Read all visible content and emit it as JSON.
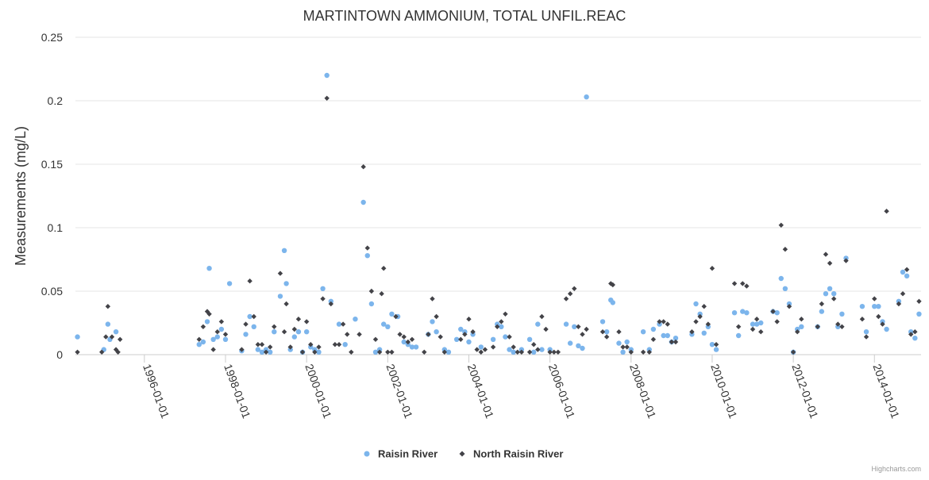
{
  "chart_data": {
    "type": "scatter",
    "title": "MARTINTOWN AMMONIUM, TOTAL UNFIL.REAC",
    "xlabel": "",
    "ylabel": "Measurements (mg/L)",
    "ylim": [
      0,
      0.25
    ],
    "yticks": [
      0,
      0.05,
      0.1,
      0.15,
      0.2,
      0.25
    ],
    "ytick_labels": [
      "0",
      "0.05",
      "0.1",
      "0.15",
      "0.2",
      "0.25"
    ],
    "xlim": [
      1994.3,
      2015.15
    ],
    "xticks": [
      1996,
      1998,
      2000,
      2002,
      2004,
      2006,
      2008,
      2010,
      2012,
      2014
    ],
    "xtick_labels": [
      "1996-01-01",
      "1998-01-01",
      "2000-01-01",
      "2002-01-01",
      "2004-01-01",
      "2006-01-01",
      "2008-01-01",
      "2010-01-01",
      "2012-01-01",
      "2014-01-01"
    ],
    "legend_position": "bottom-center",
    "grid": "horizontal",
    "series": [
      {
        "name": "Raisin River",
        "color": "#7cb5ec",
        "marker": "circle",
        "points": [
          [
            1994.35,
            0.014
          ],
          [
            1995.0,
            0.004
          ],
          [
            1995.1,
            0.024
          ],
          [
            1995.15,
            0.012
          ],
          [
            1995.3,
            0.018
          ],
          [
            1997.35,
            0.008
          ],
          [
            1997.45,
            0.01
          ],
          [
            1997.55,
            0.026
          ],
          [
            1997.6,
            0.068
          ],
          [
            1997.7,
            0.012
          ],
          [
            1997.8,
            0.014
          ],
          [
            1997.9,
            0.02
          ],
          [
            1998.0,
            0.012
          ],
          [
            1998.1,
            0.056
          ],
          [
            1998.4,
            0.003
          ],
          [
            1998.5,
            0.016
          ],
          [
            1998.6,
            0.03
          ],
          [
            1998.7,
            0.022
          ],
          [
            1998.8,
            0.004
          ],
          [
            1998.9,
            0.002
          ],
          [
            1999.0,
            0.004
          ],
          [
            1999.1,
            0.002
          ],
          [
            1999.2,
            0.018
          ],
          [
            1999.35,
            0.046
          ],
          [
            1999.45,
            0.082
          ],
          [
            1999.5,
            0.056
          ],
          [
            1999.6,
            0.004
          ],
          [
            1999.7,
            0.014
          ],
          [
            1999.8,
            0.018
          ],
          [
            1999.9,
            0.002
          ],
          [
            2000.0,
            0.018
          ],
          [
            2000.1,
            0.006
          ],
          [
            2000.2,
            0.004
          ],
          [
            2000.3,
            0.002
          ],
          [
            2000.4,
            0.052
          ],
          [
            2000.5,
            0.22
          ],
          [
            2000.6,
            0.042
          ],
          [
            2000.8,
            0.024
          ],
          [
            2000.95,
            0.008
          ],
          [
            2001.2,
            0.028
          ],
          [
            2001.4,
            0.12
          ],
          [
            2001.5,
            0.078
          ],
          [
            2001.6,
            0.04
          ],
          [
            2001.7,
            0.002
          ],
          [
            2001.8,
            0.004
          ],
          [
            2001.9,
            0.024
          ],
          [
            2002.0,
            0.022
          ],
          [
            2002.1,
            0.032
          ],
          [
            2002.25,
            0.03
          ],
          [
            2002.4,
            0.01
          ],
          [
            2002.5,
            0.008
          ],
          [
            2002.6,
            0.006
          ],
          [
            2002.7,
            0.006
          ],
          [
            2003.0,
            0.016
          ],
          [
            2003.1,
            0.026
          ],
          [
            2003.2,
            0.018
          ],
          [
            2003.4,
            0.004
          ],
          [
            2003.5,
            0.002
          ],
          [
            2003.7,
            0.012
          ],
          [
            2003.8,
            0.02
          ],
          [
            2003.9,
            0.018
          ],
          [
            2004.0,
            0.01
          ],
          [
            2004.1,
            0.016
          ],
          [
            2004.3,
            0.006
          ],
          [
            2004.6,
            0.012
          ],
          [
            2004.7,
            0.024
          ],
          [
            2004.8,
            0.022
          ],
          [
            2004.9,
            0.014
          ],
          [
            2005.0,
            0.004
          ],
          [
            2005.1,
            0.002
          ],
          [
            2005.3,
            0.004
          ],
          [
            2005.5,
            0.012
          ],
          [
            2005.6,
            0.002
          ],
          [
            2005.7,
            0.024
          ],
          [
            2005.8,
            0.004
          ],
          [
            2006.0,
            0.004
          ],
          [
            2006.4,
            0.024
          ],
          [
            2006.5,
            0.009
          ],
          [
            2006.6,
            0.022
          ],
          [
            2006.7,
            0.007
          ],
          [
            2006.8,
            0.005
          ],
          [
            2006.9,
            0.203
          ],
          [
            2007.3,
            0.026
          ],
          [
            2007.4,
            0.018
          ],
          [
            2007.5,
            0.043
          ],
          [
            2007.55,
            0.041
          ],
          [
            2007.7,
            0.009
          ],
          [
            2007.8,
            0.002
          ],
          [
            2007.9,
            0.01
          ],
          [
            2008.0,
            0.004
          ],
          [
            2008.3,
            0.018
          ],
          [
            2008.45,
            0.004
          ],
          [
            2008.55,
            0.02
          ],
          [
            2008.7,
            0.024
          ],
          [
            2008.8,
            0.015
          ],
          [
            2008.9,
            0.015
          ],
          [
            2009.0,
            0.01
          ],
          [
            2009.1,
            0.013
          ],
          [
            2009.5,
            0.016
          ],
          [
            2009.6,
            0.04
          ],
          [
            2009.7,
            0.032
          ],
          [
            2009.8,
            0.017
          ],
          [
            2009.9,
            0.022
          ],
          [
            2010.0,
            0.008
          ],
          [
            2010.1,
            0.004
          ],
          [
            2010.55,
            0.033
          ],
          [
            2010.65,
            0.015
          ],
          [
            2010.75,
            0.034
          ],
          [
            2010.85,
            0.033
          ],
          [
            2011.0,
            0.024
          ],
          [
            2011.1,
            0.024
          ],
          [
            2011.2,
            0.025
          ],
          [
            2011.5,
            0.034
          ],
          [
            2011.6,
            0.033
          ],
          [
            2011.7,
            0.06
          ],
          [
            2011.8,
            0.052
          ],
          [
            2011.9,
            0.04
          ],
          [
            2012.0,
            0.002
          ],
          [
            2012.1,
            0.02
          ],
          [
            2012.2,
            0.022
          ],
          [
            2012.6,
            0.022
          ],
          [
            2012.7,
            0.034
          ],
          [
            2012.8,
            0.048
          ],
          [
            2012.9,
            0.052
          ],
          [
            2013.0,
            0.048
          ],
          [
            2013.1,
            0.022
          ],
          [
            2013.2,
            0.032
          ],
          [
            2013.3,
            0.076
          ],
          [
            2013.7,
            0.038
          ],
          [
            2013.8,
            0.018
          ],
          [
            2014.0,
            0.038
          ],
          [
            2014.1,
            0.038
          ],
          [
            2014.2,
            0.026
          ],
          [
            2014.3,
            0.02
          ],
          [
            2014.6,
            0.042
          ],
          [
            2014.7,
            0.065
          ],
          [
            2014.8,
            0.062
          ],
          [
            2014.9,
            0.018
          ],
          [
            2015.0,
            0.013
          ],
          [
            2015.1,
            0.032
          ]
        ]
      },
      {
        "name": "North Raisin River",
        "color": "#434348",
        "marker": "diamond",
        "points": [
          [
            1994.35,
            0.002
          ],
          [
            1994.95,
            0.002
          ],
          [
            1995.05,
            0.014
          ],
          [
            1995.1,
            0.038
          ],
          [
            1995.2,
            0.014
          ],
          [
            1995.3,
            0.004
          ],
          [
            1995.35,
            0.002
          ],
          [
            1995.4,
            0.012
          ],
          [
            1997.35,
            0.012
          ],
          [
            1997.45,
            0.022
          ],
          [
            1997.55,
            0.034
          ],
          [
            1997.6,
            0.032
          ],
          [
            1997.7,
            0.004
          ],
          [
            1997.8,
            0.018
          ],
          [
            1997.9,
            0.026
          ],
          [
            1998.0,
            0.016
          ],
          [
            1998.4,
            0.004
          ],
          [
            1998.5,
            0.024
          ],
          [
            1998.6,
            0.058
          ],
          [
            1998.7,
            0.03
          ],
          [
            1998.8,
            0.008
          ],
          [
            1998.9,
            0.008
          ],
          [
            1999.0,
            0.002
          ],
          [
            1999.1,
            0.006
          ],
          [
            1999.2,
            0.022
          ],
          [
            1999.35,
            0.064
          ],
          [
            1999.45,
            0.018
          ],
          [
            1999.5,
            0.04
          ],
          [
            1999.6,
            0.006
          ],
          [
            1999.7,
            0.02
          ],
          [
            1999.8,
            0.028
          ],
          [
            1999.9,
            0.002
          ],
          [
            2000.0,
            0.026
          ],
          [
            2000.1,
            0.008
          ],
          [
            2000.2,
            0.002
          ],
          [
            2000.3,
            0.006
          ],
          [
            2000.4,
            0.044
          ],
          [
            2000.5,
            0.202
          ],
          [
            2000.6,
            0.04
          ],
          [
            2000.7,
            0.008
          ],
          [
            2000.8,
            0.008
          ],
          [
            2000.9,
            0.024
          ],
          [
            2001.0,
            0.016
          ],
          [
            2001.1,
            0.002
          ],
          [
            2001.3,
            0.016
          ],
          [
            2001.4,
            0.148
          ],
          [
            2001.5,
            0.084
          ],
          [
            2001.6,
            0.05
          ],
          [
            2001.7,
            0.012
          ],
          [
            2001.8,
            0.002
          ],
          [
            2001.85,
            0.048
          ],
          [
            2001.9,
            0.068
          ],
          [
            2002.0,
            0.002
          ],
          [
            2002.1,
            0.002
          ],
          [
            2002.2,
            0.03
          ],
          [
            2002.3,
            0.016
          ],
          [
            2002.4,
            0.014
          ],
          [
            2002.5,
            0.01
          ],
          [
            2002.6,
            0.012
          ],
          [
            2002.9,
            0.002
          ],
          [
            2003.0,
            0.016
          ],
          [
            2003.1,
            0.044
          ],
          [
            2003.2,
            0.03
          ],
          [
            2003.3,
            0.014
          ],
          [
            2003.4,
            0.002
          ],
          [
            2003.8,
            0.012
          ],
          [
            2003.9,
            0.016
          ],
          [
            2004.0,
            0.028
          ],
          [
            2004.1,
            0.018
          ],
          [
            2004.2,
            0.004
          ],
          [
            2004.3,
            0.002
          ],
          [
            2004.4,
            0.004
          ],
          [
            2004.6,
            0.006
          ],
          [
            2004.7,
            0.022
          ],
          [
            2004.8,
            0.026
          ],
          [
            2004.9,
            0.032
          ],
          [
            2005.0,
            0.014
          ],
          [
            2005.1,
            0.006
          ],
          [
            2005.2,
            0.002
          ],
          [
            2005.3,
            0.002
          ],
          [
            2005.5,
            0.002
          ],
          [
            2005.6,
            0.008
          ],
          [
            2005.7,
            0.004
          ],
          [
            2005.8,
            0.03
          ],
          [
            2005.9,
            0.02
          ],
          [
            2006.0,
            0.002
          ],
          [
            2006.1,
            0.002
          ],
          [
            2006.2,
            0.002
          ],
          [
            2006.4,
            0.044
          ],
          [
            2006.5,
            0.048
          ],
          [
            2006.6,
            0.052
          ],
          [
            2006.7,
            0.022
          ],
          [
            2006.8,
            0.016
          ],
          [
            2006.9,
            0.02
          ],
          [
            2007.3,
            0.018
          ],
          [
            2007.4,
            0.014
          ],
          [
            2007.5,
            0.056
          ],
          [
            2007.55,
            0.055
          ],
          [
            2007.7,
            0.018
          ],
          [
            2007.8,
            0.006
          ],
          [
            2007.9,
            0.006
          ],
          [
            2008.0,
            0.002
          ],
          [
            2008.3,
            0.002
          ],
          [
            2008.45,
            0.002
          ],
          [
            2008.55,
            0.012
          ],
          [
            2008.7,
            0.026
          ],
          [
            2008.8,
            0.026
          ],
          [
            2008.9,
            0.024
          ],
          [
            2009.0,
            0.01
          ],
          [
            2009.1,
            0.01
          ],
          [
            2009.5,
            0.018
          ],
          [
            2009.6,
            0.026
          ],
          [
            2009.7,
            0.03
          ],
          [
            2009.8,
            0.038
          ],
          [
            2009.9,
            0.024
          ],
          [
            2010.0,
            0.068
          ],
          [
            2010.1,
            0.008
          ],
          [
            2010.55,
            0.056
          ],
          [
            2010.65,
            0.022
          ],
          [
            2010.75,
            0.056
          ],
          [
            2010.85,
            0.054
          ],
          [
            2011.0,
            0.02
          ],
          [
            2011.1,
            0.028
          ],
          [
            2011.2,
            0.018
          ],
          [
            2011.5,
            0.034
          ],
          [
            2011.6,
            0.026
          ],
          [
            2011.7,
            0.102
          ],
          [
            2011.8,
            0.083
          ],
          [
            2011.9,
            0.038
          ],
          [
            2012.0,
            0.002
          ],
          [
            2012.1,
            0.018
          ],
          [
            2012.2,
            0.028
          ],
          [
            2012.6,
            0.022
          ],
          [
            2012.7,
            0.04
          ],
          [
            2012.8,
            0.079
          ],
          [
            2012.9,
            0.072
          ],
          [
            2013.0,
            0.044
          ],
          [
            2013.1,
            0.024
          ],
          [
            2013.2,
            0.022
          ],
          [
            2013.3,
            0.074
          ],
          [
            2013.7,
            0.028
          ],
          [
            2013.8,
            0.014
          ],
          [
            2014.0,
            0.044
          ],
          [
            2014.1,
            0.03
          ],
          [
            2014.2,
            0.024
          ],
          [
            2014.3,
            0.113
          ],
          [
            2014.6,
            0.04
          ],
          [
            2014.7,
            0.048
          ],
          [
            2014.8,
            0.067
          ],
          [
            2014.9,
            0.016
          ],
          [
            2015.0,
            0.018
          ],
          [
            2015.1,
            0.042
          ]
        ]
      }
    ]
  },
  "credits": "Highcharts.com"
}
